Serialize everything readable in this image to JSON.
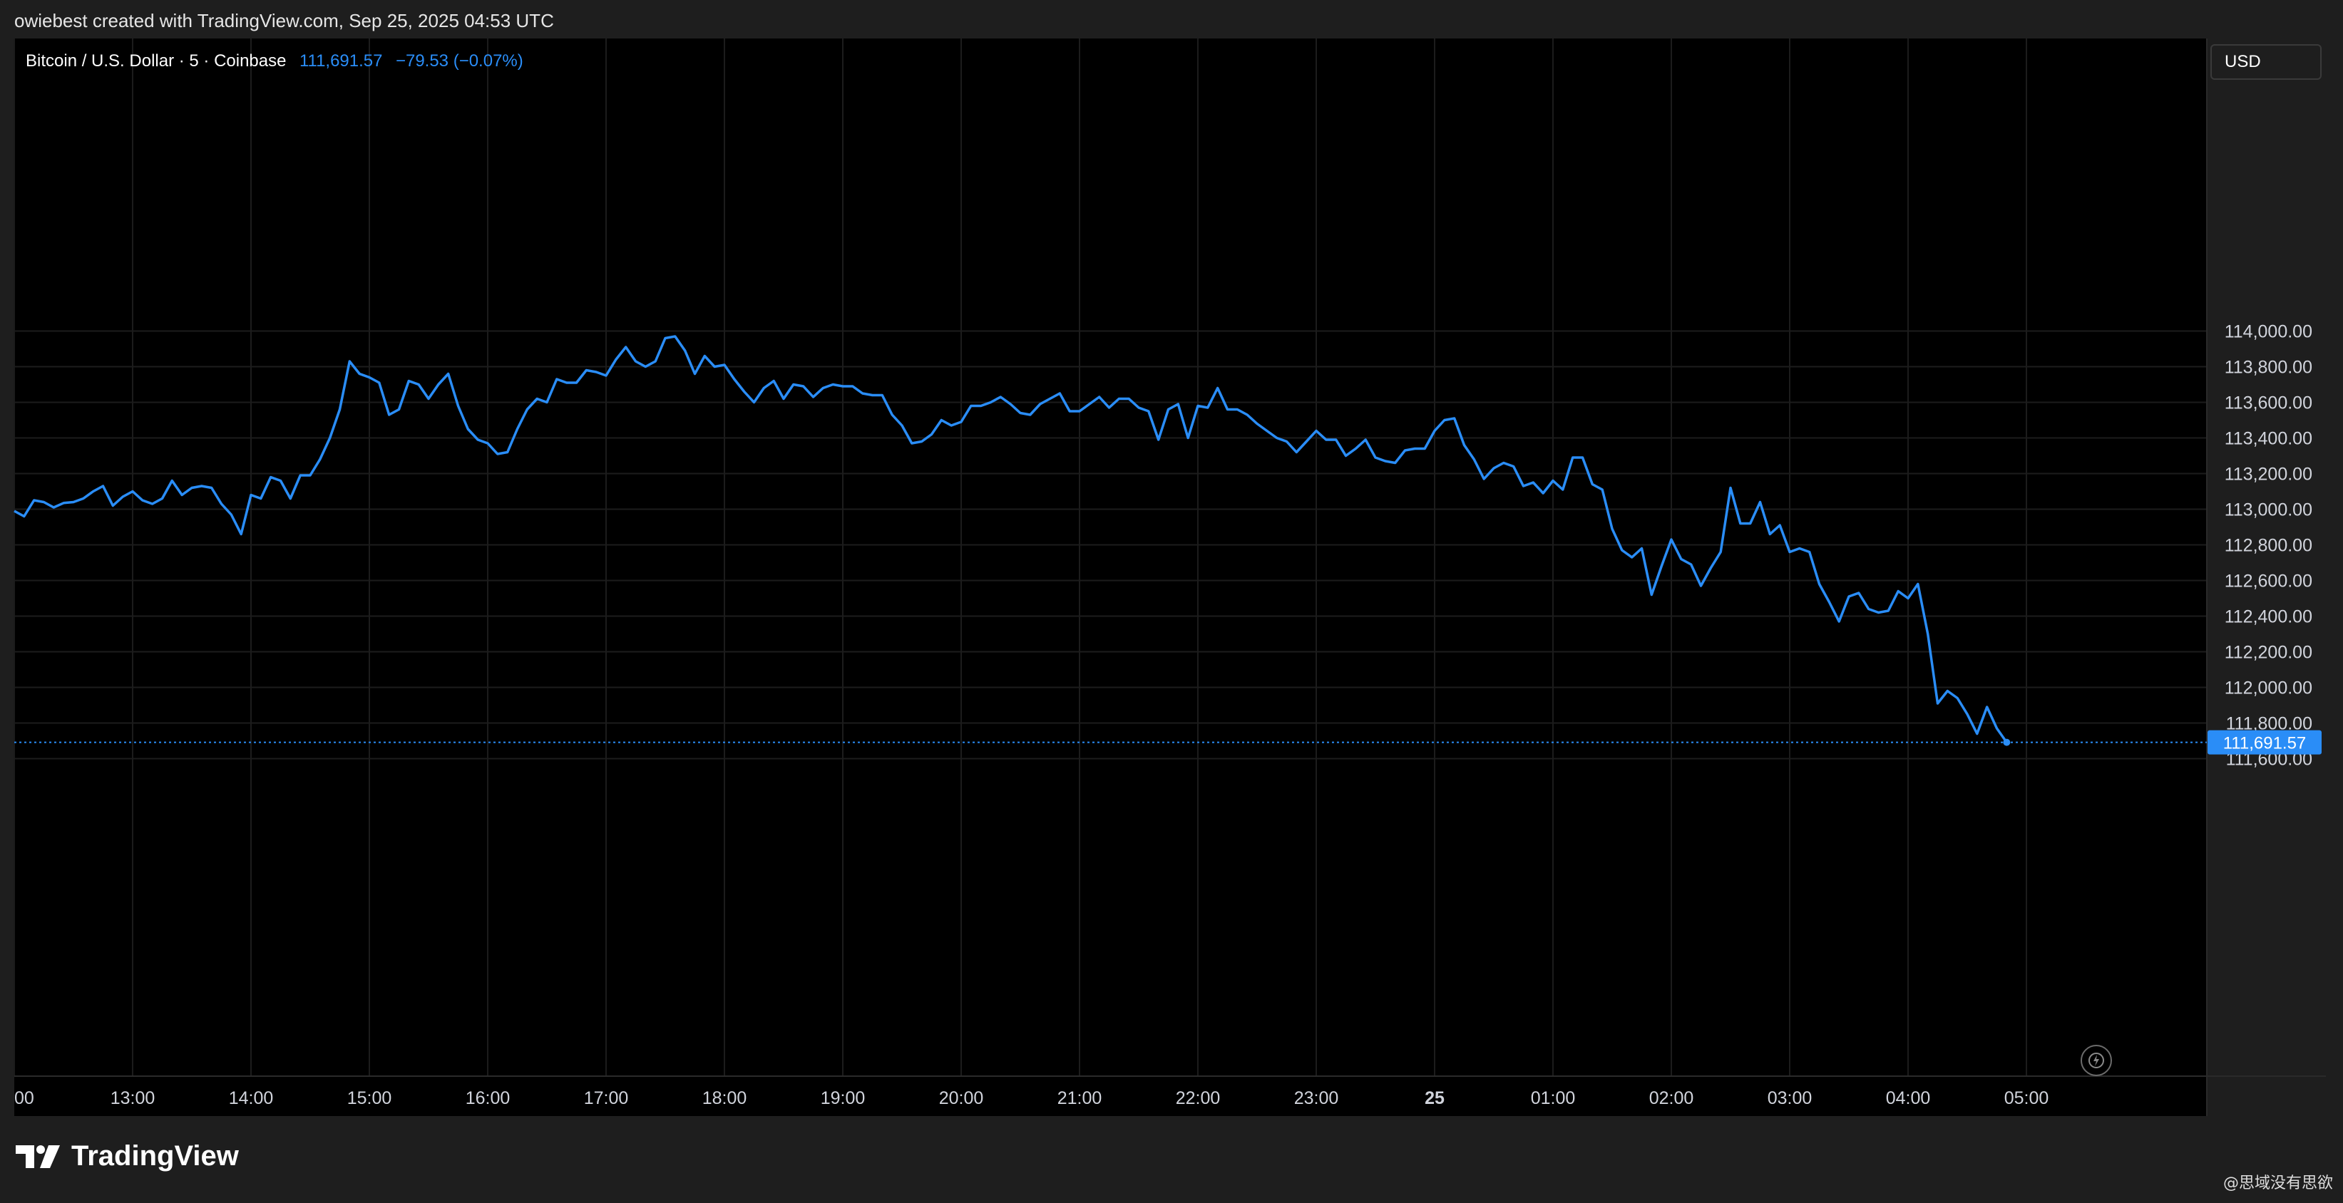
{
  "header": {
    "credit": "owiebest created with TradingView.com, Sep 25, 2025 04:53 UTC"
  },
  "legend": {
    "title": "Bitcoin / U.S. Dollar · 5 · Coinbase",
    "last": "111,691.57",
    "change": "−79.53 (−0.07%)"
  },
  "currency": "USD",
  "brand": {
    "name": "TradingView"
  },
  "watermark": "@思域没有思欲",
  "colors": {
    "line": "#2a8df7",
    "background": "#000000",
    "frame": "#1e1e1e",
    "grid": "#1a1a1a"
  },
  "icons": [
    "tradingview-logo-icon",
    "snapshot-icon"
  ],
  "chart_data": {
    "type": "line",
    "title": "Bitcoin / U.S. Dollar · 5 · Coinbase",
    "xlabel": "",
    "ylabel": "",
    "x_start": "12:00",
    "interval_minutes": 5,
    "ylim": [
      111520,
      114140
    ],
    "yticks": [
      111600,
      111800,
      112000,
      112200,
      112400,
      112600,
      112800,
      113000,
      113200,
      113400,
      113600,
      113800,
      114000
    ],
    "ytick_labels": [
      "111,600.00",
      "111,800.00",
      "112,000.00",
      "112,200.00",
      "112,400.00",
      "112,600.00",
      "112,800.00",
      "113,000.00",
      "113,200.00",
      "113,400.00",
      "113,600.00",
      "113,800.00",
      "114,000.00"
    ],
    "xticks": [
      "00",
      "13:00",
      "14:00",
      "15:00",
      "16:00",
      "17:00",
      "18:00",
      "19:00",
      "20:00",
      "21:00",
      "22:00",
      "23:00",
      "25",
      "01:00",
      "02:00",
      "03:00",
      "04:00",
      "05:00"
    ],
    "last_price": 111691.57,
    "last_price_label": "111,691.57",
    "grid": true,
    "series": [
      {
        "values": [
          112990,
          112960,
          113050,
          113040,
          113010,
          113035,
          113040,
          113060,
          113100,
          113130,
          113020,
          113070,
          113100,
          113050,
          113030,
          113060,
          113160,
          113080,
          113120,
          113130,
          113120,
          113030,
          112970,
          112860,
          113080,
          113060,
          113180,
          113160,
          113060,
          113190,
          113190,
          113280,
          113400,
          113560,
          113830,
          113760,
          113740,
          113710,
          113530,
          113560,
          113720,
          113700,
          113620,
          113700,
          113760,
          113580,
          113450,
          113390,
          113370,
          113310,
          113320,
          113450,
          113560,
          113620,
          113600,
          113730,
          113710,
          113710,
          113780,
          113770,
          113750,
          113840,
          113910,
          113830,
          113800,
          113830,
          113960,
          113970,
          113890,
          113760,
          113860,
          113800,
          113810,
          113730,
          113660,
          113600,
          113680,
          113720,
          113620,
          113700,
          113690,
          113630,
          113680,
          113700,
          113690,
          113690,
          113650,
          113640,
          113640,
          113530,
          113470,
          113370,
          113380,
          113420,
          113500,
          113470,
          113490,
          113580,
          113580,
          113600,
          113630,
          113590,
          113540,
          113530,
          113590,
          113620,
          113650,
          113550,
          113550,
          113590,
          113630,
          113570,
          113620,
          113620,
          113570,
          113550,
          113390,
          113560,
          113590,
          113400,
          113580,
          113570,
          113680,
          113560,
          113560,
          113530,
          113480,
          113440,
          113400,
          113380,
          113320,
          113380,
          113440,
          113390,
          113390,
          113300,
          113340,
          113390,
          113290,
          113270,
          113260,
          113330,
          113340,
          113340,
          113440,
          113500,
          113510,
          113360,
          113280,
          113170,
          113230,
          113260,
          113240,
          113130,
          113150,
          113090,
          113160,
          113110,
          113290,
          113290,
          113140,
          113110,
          112890,
          112770,
          112730,
          112780,
          112520,
          112680,
          112830,
          112720,
          112690,
          112570,
          112670,
          112760,
          113120,
          112920,
          112920,
          113040,
          112860,
          112910,
          112760,
          112780,
          112760,
          112580,
          112480,
          112370,
          112510,
          112530,
          112440,
          112420,
          112430,
          112540,
          112500,
          112580,
          112300,
          111910,
          111980,
          111940,
          111850,
          111740,
          111890,
          111770,
          111691.57
        ]
      }
    ]
  }
}
